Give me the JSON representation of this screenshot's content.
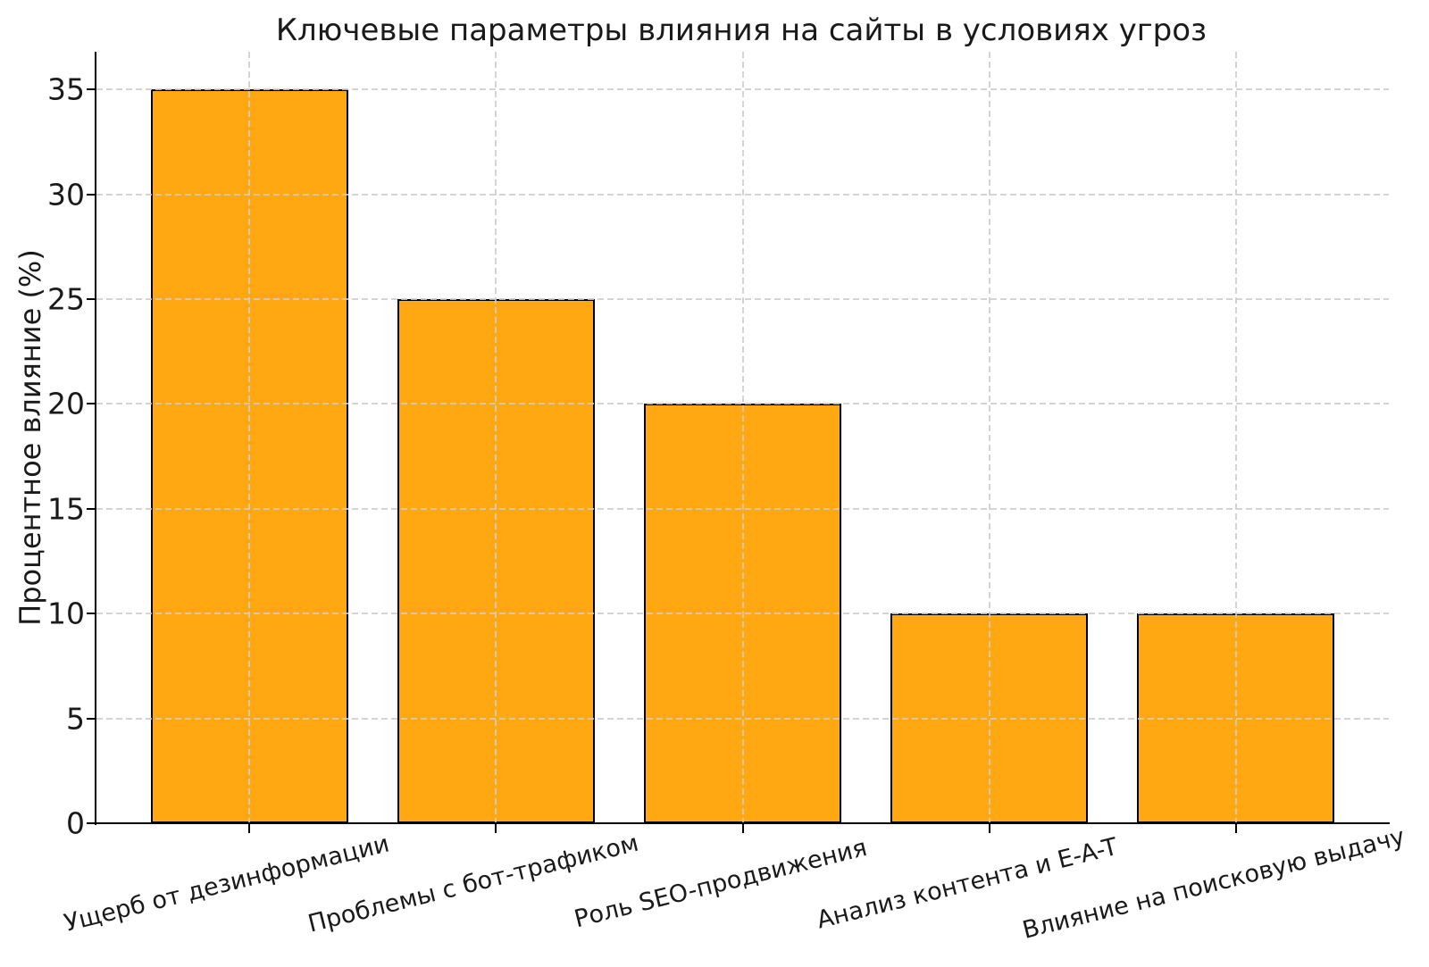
{
  "chart_data": {
    "type": "bar",
    "title": "Ключевые параметры влияния на сайты в условиях угроз",
    "ylabel": "Процентное влияние (%)",
    "xlabel": "",
    "categories": [
      "Ущерб от дезинформации",
      "Проблемы с бот-трафиком",
      "Роль SEO-продвижения",
      "Анализ контента и E-A-T",
      "Влияние на поисковую выдачу"
    ],
    "values": [
      35,
      25,
      20,
      10,
      10
    ],
    "yticks": [
      0,
      5,
      10,
      15,
      20,
      25,
      30,
      35
    ],
    "ylim": [
      0,
      36.8
    ],
    "grid": "dashed, both axes",
    "legend": "none",
    "colors": {
      "bar_fill": "#FFA812",
      "bar_edge": "#000000",
      "grid": "#cdcdcd",
      "text": "#1a1a1a",
      "background": "#ffffff"
    }
  }
}
